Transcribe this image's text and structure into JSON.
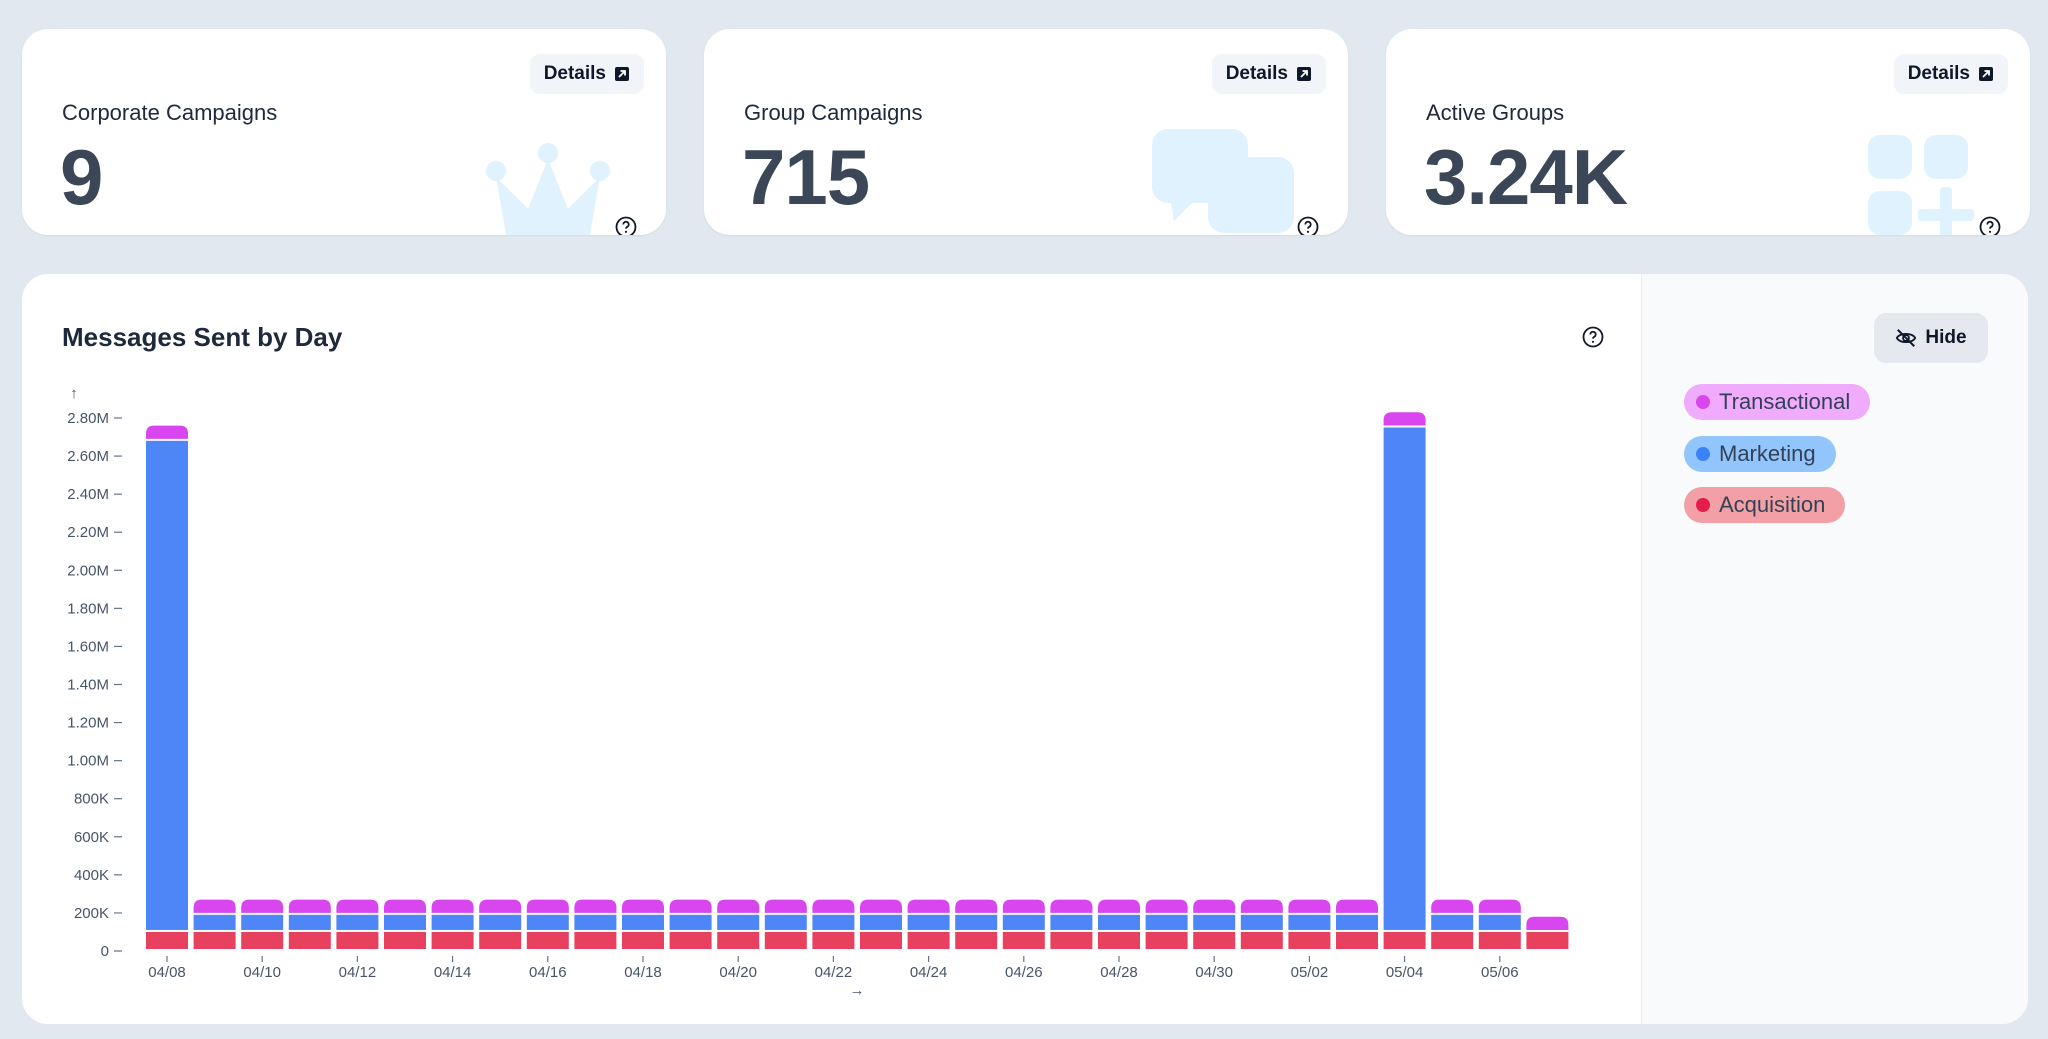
{
  "cards": [
    {
      "title": "Corporate Campaigns",
      "value": "9",
      "details_label": "Details",
      "icon": "crown-icon"
    },
    {
      "title": "Group Campaigns",
      "value": "715",
      "details_label": "Details",
      "icon": "chat-bubbles-icon"
    },
    {
      "title": "Active Groups",
      "value": "3.24K",
      "details_label": "Details",
      "icon": "add-grid-icon"
    }
  ],
  "panel": {
    "hide_label": "Hide",
    "hide_icon": "eye-off-icon"
  },
  "colors": {
    "transactional": "#d946ef",
    "marketing": "#4f86f7",
    "acquisition": "#e8415f"
  },
  "chart_data": {
    "type": "bar",
    "stacked": true,
    "title": "Messages Sent by Day",
    "xlabel": "",
    "ylabel": "",
    "ylim": [
      0,
      2800000
    ],
    "y_ticks": [
      "0",
      "200K",
      "400K",
      "600K",
      "800K",
      "1.00M",
      "1.20M",
      "1.40M",
      "1.60M",
      "1.80M",
      "2.00M",
      "2.20M",
      "2.40M",
      "2.60M",
      "2.80M"
    ],
    "x_tick_labels": [
      "04/08",
      "04/10",
      "04/12",
      "04/14",
      "04/16",
      "04/18",
      "04/20",
      "04/22",
      "04/24",
      "04/26",
      "04/28",
      "04/30",
      "05/02",
      "05/04",
      "05/06"
    ],
    "legend_position": "right",
    "categories": [
      "04/08",
      "04/09",
      "04/10",
      "04/11",
      "04/12",
      "04/13",
      "04/14",
      "04/15",
      "04/16",
      "04/17",
      "04/18",
      "04/19",
      "04/20",
      "04/21",
      "04/22",
      "04/23",
      "04/24",
      "04/25",
      "04/26",
      "04/27",
      "04/28",
      "04/29",
      "04/30",
      "05/01",
      "05/02",
      "05/03",
      "05/04",
      "05/05",
      "05/06",
      "05/07"
    ],
    "series": [
      {
        "name": "Acquisition",
        "values": [
          100000,
          100000,
          100000,
          100000,
          100000,
          100000,
          100000,
          100000,
          100000,
          100000,
          100000,
          100000,
          100000,
          100000,
          100000,
          100000,
          100000,
          100000,
          100000,
          100000,
          100000,
          100000,
          100000,
          100000,
          100000,
          100000,
          100000,
          100000,
          100000,
          100000
        ]
      },
      {
        "name": "Marketing",
        "values": [
          2580000,
          90000,
          90000,
          90000,
          90000,
          90000,
          90000,
          90000,
          90000,
          90000,
          90000,
          90000,
          90000,
          90000,
          90000,
          90000,
          90000,
          90000,
          90000,
          90000,
          90000,
          90000,
          90000,
          90000,
          90000,
          90000,
          2650000,
          90000,
          90000,
          0
        ]
      },
      {
        "name": "Transactional",
        "values": [
          80000,
          80000,
          80000,
          80000,
          80000,
          80000,
          80000,
          80000,
          80000,
          80000,
          80000,
          80000,
          80000,
          80000,
          80000,
          80000,
          80000,
          80000,
          80000,
          80000,
          80000,
          80000,
          80000,
          80000,
          80000,
          80000,
          80000,
          80000,
          80000,
          80000
        ]
      }
    ]
  }
}
